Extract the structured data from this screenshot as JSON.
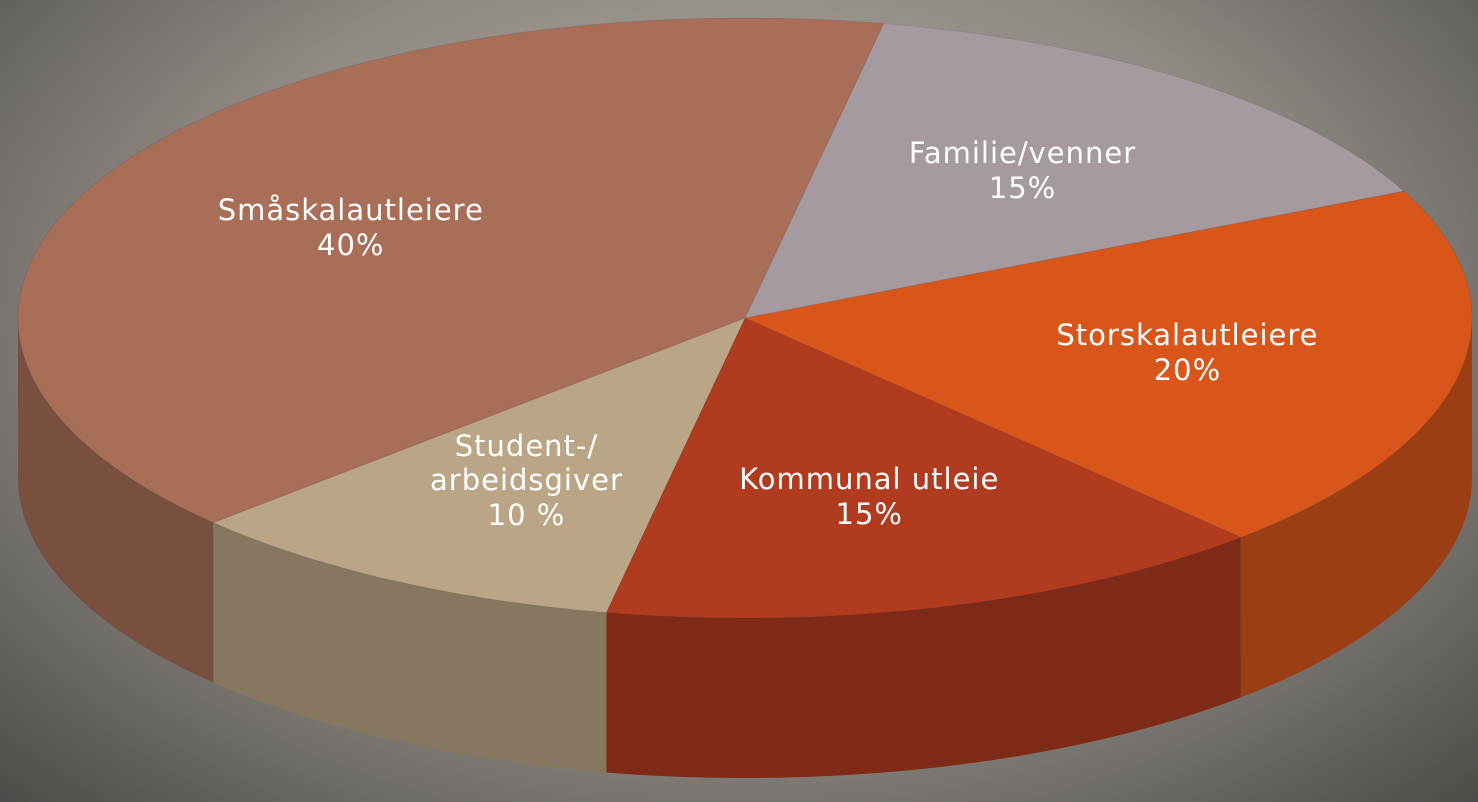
{
  "chart_data": {
    "type": "pie",
    "categories": [
      "Familie/venner",
      "Storskalautleiere",
      "Kommunal utleie",
      "Student-/\narbeidsgiver",
      "Småskalautleiere"
    ],
    "values": [
      15,
      20,
      15,
      10,
      40
    ],
    "value_labels": [
      "15%",
      "20%",
      "15%",
      "10 %",
      "40%"
    ],
    "colors": [
      "#a59a9f",
      "#d9561a",
      "#b13b1f",
      "#baa686",
      "#a86e58"
    ]
  }
}
